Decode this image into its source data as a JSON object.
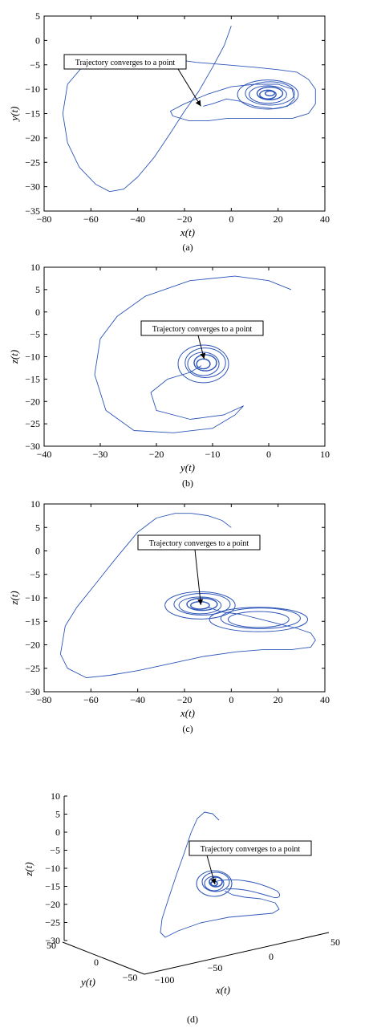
{
  "figure": {
    "annotation": "Trajectory converges to a point",
    "line_color": "#2e56b8",
    "annotation_box_border": "#000000"
  },
  "chart_data": [
    {
      "id": "a",
      "type": "line",
      "caption": "(a)",
      "xlabel": "x(t)",
      "ylabel": "y(t)",
      "xlim": [
        -80,
        40
      ],
      "ylim": [
        -35,
        5
      ],
      "xticks": [
        "−80",
        "−60",
        "−40",
        "−20",
        "0",
        "20",
        "40"
      ],
      "yticks": [
        "5",
        "0",
        "−5",
        "−10",
        "−15",
        "−20",
        "−25",
        "−30",
        "−35"
      ],
      "annotation": "Trajectory converges to a point",
      "annotation_target": [
        -13,
        -13.5
      ],
      "path": [
        [
          0,
          3
        ],
        [
          -3,
          -1
        ],
        [
          -8,
          -5.5
        ],
        [
          -14,
          -10.5
        ],
        [
          -20,
          -14.5
        ],
        [
          -26,
          -19
        ],
        [
          -33,
          -24
        ],
        [
          -40,
          -28
        ],
        [
          -46,
          -30.5
        ],
        [
          -52,
          -31
        ],
        [
          -58,
          -29.5
        ],
        [
          -65,
          -26
        ],
        [
          -70,
          -21
        ],
        [
          -72,
          -15
        ],
        [
          -70,
          -9
        ],
        [
          -62,
          -4.5
        ],
        [
          -48,
          -3
        ],
        [
          -30,
          -3.5
        ],
        [
          -15,
          -4.5
        ],
        [
          -2,
          -5
        ],
        [
          10,
          -5.5
        ],
        [
          20,
          -6
        ],
        [
          28,
          -6.5
        ],
        [
          33,
          -8
        ],
        [
          36,
          -10
        ],
        [
          36,
          -13
        ],
        [
          33,
          -15
        ],
        [
          26,
          -16
        ],
        [
          16,
          -16
        ],
        [
          6,
          -16
        ],
        [
          -2,
          -16
        ],
        [
          -10,
          -16.5
        ],
        [
          -18,
          -16.5
        ],
        [
          -25,
          -15.5
        ],
        [
          -26,
          -14.5
        ],
        [
          -20,
          -13
        ],
        [
          -10,
          -11
        ],
        [
          0,
          -9.5
        ],
        [
          10,
          -9
        ],
        [
          20,
          -9
        ],
        [
          26,
          -10
        ],
        [
          27,
          -12
        ],
        [
          24,
          -13.5
        ],
        [
          18,
          -14
        ],
        [
          10,
          -13.5
        ],
        [
          4,
          -12.5
        ],
        [
          -2,
          -12
        ],
        [
          -8,
          -13
        ],
        [
          -12,
          -13.5
        ]
      ],
      "attractor": {
        "center": [
          16,
          -11
        ],
        "radii": [
          [
            13,
            3
          ],
          [
            10.5,
            2.4
          ],
          [
            8,
            1.8
          ],
          [
            5.5,
            1.3
          ],
          [
            3.5,
            0.9
          ],
          [
            2,
            0.5
          ]
        ]
      }
    },
    {
      "id": "b",
      "type": "line",
      "caption": "(b)",
      "xlabel": "y(t)",
      "ylabel": "z(t)",
      "xlim": [
        -40,
        10
      ],
      "ylim": [
        -30,
        10
      ],
      "xticks": [
        "−40",
        "−30",
        "−20",
        "−10",
        "0",
        "10"
      ],
      "yticks": [
        "10",
        "5",
        "0",
        "−5",
        "−10",
        "−15",
        "−20",
        "−25",
        "−30"
      ],
      "annotation": "Trajectory converges to a point",
      "annotation_target": [
        -11.5,
        -10.5
      ],
      "path": [
        [
          4,
          5
        ],
        [
          0,
          7
        ],
        [
          -6,
          8
        ],
        [
          -14,
          7
        ],
        [
          -22,
          3.5
        ],
        [
          -27,
          -1
        ],
        [
          -30,
          -6
        ],
        [
          -31,
          -14
        ],
        [
          -29,
          -22
        ],
        [
          -24,
          -26.5
        ],
        [
          -17,
          -27
        ],
        [
          -10,
          -26
        ],
        [
          -6,
          -23
        ],
        [
          -4.5,
          -21
        ],
        [
          -8,
          -23
        ],
        [
          -14,
          -24
        ],
        [
          -20,
          -22
        ],
        [
          -21,
          -18
        ],
        [
          -18,
          -15
        ],
        [
          -14,
          -13.5
        ],
        [
          -12,
          -12
        ]
      ],
      "attractor": {
        "center": [
          -11.5,
          -11.5
        ],
        "radii": [
          [
            4.5,
            4.2
          ],
          [
            3.6,
            3.3
          ],
          [
            2.8,
            2.6
          ],
          [
            2,
            1.8
          ],
          [
            1.2,
            1.1
          ]
        ]
      }
    },
    {
      "id": "c",
      "type": "line",
      "caption": "(c)",
      "xlabel": "x(t)",
      "ylabel": "z(t)",
      "xlim": [
        -80,
        40
      ],
      "ylim": [
        -30,
        10
      ],
      "xticks": [
        "−80",
        "−60",
        "−40",
        "−20",
        "0",
        "20",
        "40"
      ],
      "yticks": [
        "10",
        "5",
        "0",
        "−5",
        "−10",
        "−15",
        "−20",
        "−25",
        "−30"
      ],
      "annotation": "Trajectory converges to a point",
      "annotation_target": [
        -13,
        -11.5
      ],
      "path": [
        [
          0,
          5
        ],
        [
          -4,
          6.5
        ],
        [
          -10,
          7.5
        ],
        [
          -17,
          8
        ],
        [
          -24,
          8
        ],
        [
          -32,
          7
        ],
        [
          -40,
          4
        ],
        [
          -50,
          -2
        ],
        [
          -58,
          -7
        ],
        [
          -66,
          -12
        ],
        [
          -71,
          -16
        ],
        [
          -73,
          -22
        ],
        [
          -70,
          -25
        ],
        [
          -62,
          -27
        ],
        [
          -52,
          -26.5
        ],
        [
          -40,
          -25.5
        ],
        [
          -26,
          -24
        ],
        [
          -12,
          -22.5
        ],
        [
          2,
          -21.5
        ],
        [
          14,
          -21
        ],
        [
          26,
          -21
        ],
        [
          34,
          -20.5
        ],
        [
          36,
          -19
        ],
        [
          34,
          -17.5
        ],
        [
          28,
          -16.5
        ],
        [
          20,
          -15.5
        ],
        [
          12,
          -14.5
        ],
        [
          4,
          -13.5
        ],
        [
          -4,
          -13
        ],
        [
          -10,
          -12
        ]
      ],
      "attractor": {
        "center": [
          -13,
          -11.5
        ],
        "radii": [
          [
            15,
            2.9
          ],
          [
            12,
            2.3
          ],
          [
            9,
            1.8
          ],
          [
            6.5,
            1.3
          ],
          [
            4,
            0.8
          ]
        ]
      },
      "tail": {
        "center": [
          12,
          -14.5
        ],
        "radii": [
          [
            21,
            2.6
          ],
          [
            17,
            2.2
          ],
          [
            13,
            1.7
          ]
        ]
      }
    },
    {
      "id": "d",
      "type": "line",
      "caption": "(d)",
      "projection": "3d",
      "xlabel": "x(t)",
      "ylabel": "y(t)",
      "zlabel": "z(t)",
      "xlim": [
        -100,
        50
      ],
      "ylim": [
        -50,
        50
      ],
      "zlim": [
        -30,
        10
      ],
      "xticks": [
        "−100",
        "−50",
        "0",
        "50"
      ],
      "yticks": [
        "50",
        "0",
        "−50"
      ],
      "zticks": [
        "10",
        "5",
        "0",
        "−5",
        "−10",
        "−15",
        "−20",
        "−25",
        "−30"
      ],
      "annotation": "Trajectory converges to a point",
      "attractor": {
        "radii": [
          [
            22,
            16
          ],
          [
            17,
            12
          ],
          [
            12,
            9
          ],
          [
            8,
            6
          ],
          [
            4,
            3
          ]
        ]
      }
    }
  ]
}
